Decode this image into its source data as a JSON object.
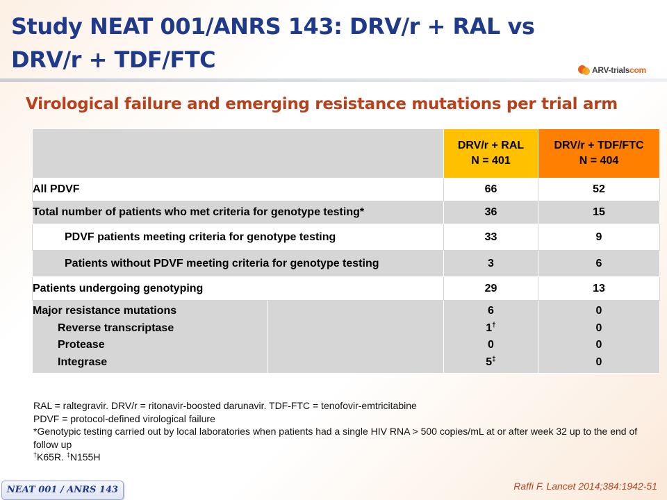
{
  "title": "Study NEAT 001/ANRS 143: DRV/r + RAL vs DRV/r + TDF/FTC",
  "logo_text": "ARV-trials",
  "logo_suffix": "com",
  "subtitle": "Virological failure and emerging resistance mutations per trial arm",
  "table": {
    "columns": [
      {
        "name": "DRV/r + RAL",
        "n": "N = 401",
        "color": "#ffc000"
      },
      {
        "name": "DRV/r + TDF/FTC",
        "n": "N = 404",
        "color": "#ff8000"
      }
    ],
    "rows": [
      {
        "label": "All PDVF",
        "ral": "66",
        "tdf": "52"
      },
      {
        "label": "Total number of patients who met criteria for genotype testing*",
        "ral": "36",
        "tdf": "15"
      },
      {
        "label": "PDVF patients meeting criteria for genotype testing",
        "ral": "33",
        "tdf": "9"
      },
      {
        "label": "Patients without PDVF meeting criteria for genotype testing",
        "ral": "3",
        "tdf": "6"
      },
      {
        "label": "Patients undergoing genotyping",
        "ral": "29",
        "tdf": "13"
      }
    ],
    "mutations": {
      "label": "Major resistance mutations",
      "total_ral": "6",
      "total_tdf": "0",
      "items": [
        {
          "label": "Reverse transcriptase",
          "ral": "1",
          "ral_mark": "†",
          "tdf": "0"
        },
        {
          "label": "Protease",
          "ral": "0",
          "ral_mark": "",
          "tdf": "0"
        },
        {
          "label": "Integrase",
          "ral": "5",
          "ral_mark": "‡",
          "tdf": "0"
        }
      ]
    }
  },
  "footnotes": {
    "line1": "RAL = raltegravir. DRV/r = ritonavir-boosted darunavir. TDF-FTC = tenofovir-emtricitabine",
    "line2": "PDVF = protocol-defined virological failure",
    "line3": "*Genotypic testing carried out by local laboratories when patients had a single HIV RNA > 500 copies/mL at or after week 32 up to the end of follow up",
    "mark1": "†",
    "text1": "K65R. ",
    "mark2": "‡",
    "text2": "N155H"
  },
  "badge": "NEAT 001 / ANRS 143",
  "reference": "Raffi F. Lancet 2014;384:1942-51"
}
